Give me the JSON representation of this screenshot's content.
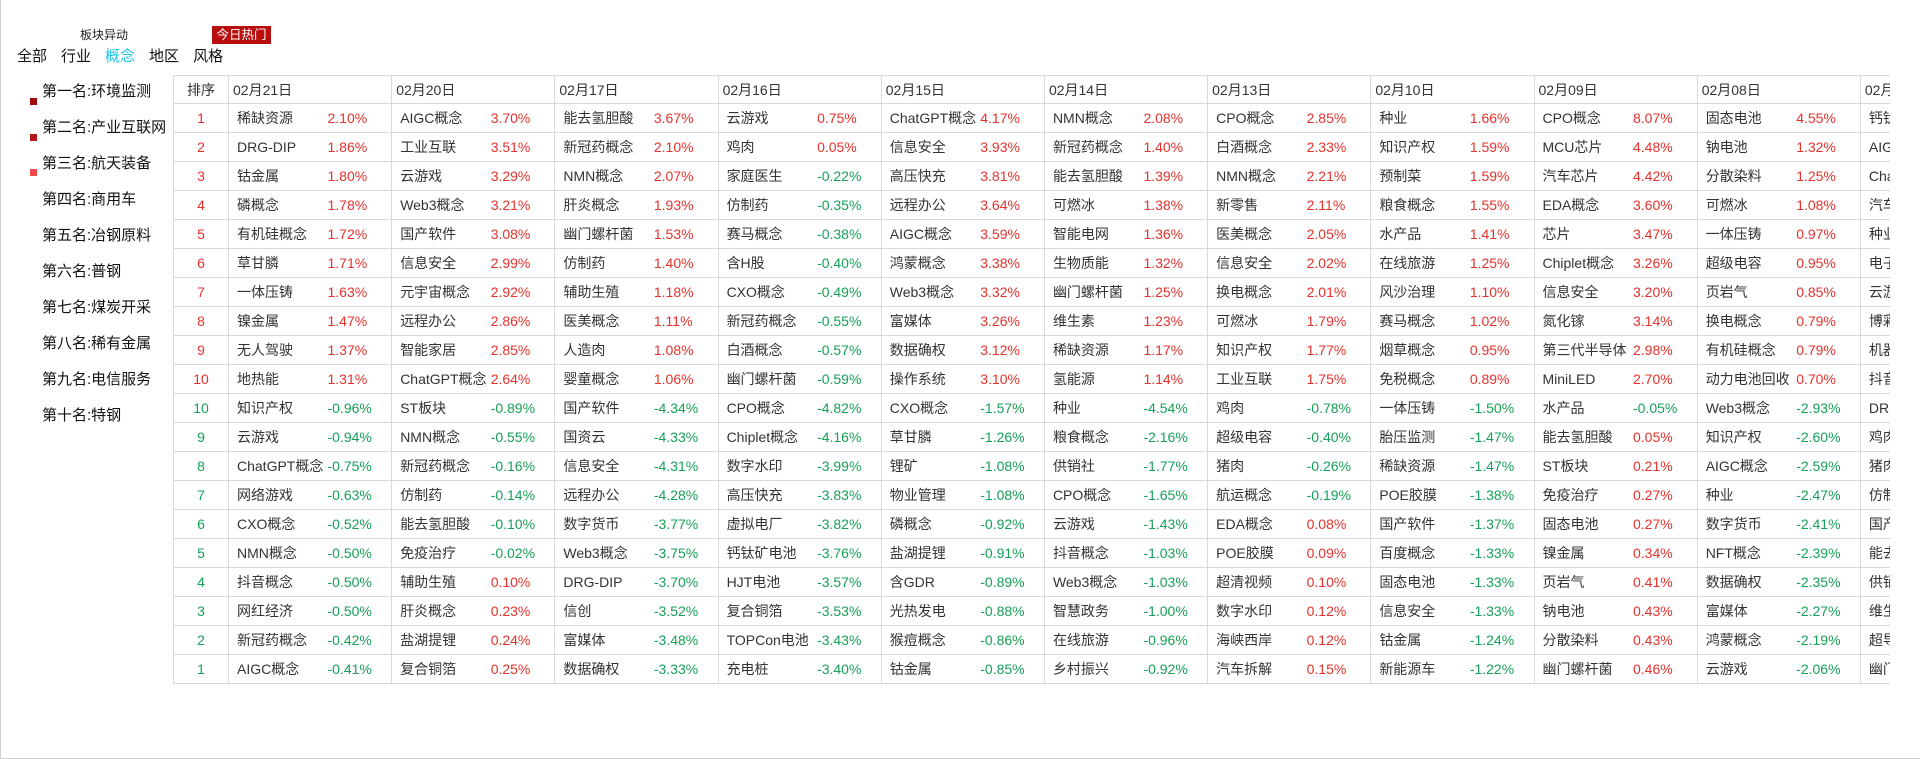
{
  "header": {
    "subtitle": "板块异动",
    "hot_button": "今日热门"
  },
  "tabs": [
    {
      "label": "全部",
      "active": false
    },
    {
      "label": "行业",
      "active": false
    },
    {
      "label": "概念",
      "active": true
    },
    {
      "label": "地区",
      "active": false
    },
    {
      "label": "风格",
      "active": false
    }
  ],
  "ranking": [
    "第一名:环境监测",
    "第二名:产业互联网",
    "第三名:航天装备",
    "第四名:商用车",
    "第五名:冶钢原料",
    "第六名:普钢",
    "第七名:煤炭开采",
    "第八名:稀有金属",
    "第九名:电信服务",
    "第十名:特钢"
  ],
  "colors": {
    "accent": "#22c4ec",
    "up": "#e5322d",
    "down": "#17a058",
    "hot_bg": "#b80e0e",
    "markers": [
      "#a00c0c",
      "#b51616",
      "#f04a4a"
    ]
  },
  "table": {
    "rank_header": "排序",
    "dates": [
      "02月21日",
      "02月20日",
      "02月17日",
      "02月16日",
      "02月15日",
      "02月14日",
      "02月13日",
      "02月10日",
      "02月09日",
      "02月08日",
      "02月"
    ],
    "rows": [
      {
        "rank": "1",
        "cells": [
          [
            "稀缺资源",
            "2.10%"
          ],
          [
            "AIGC概念",
            "3.70%"
          ],
          [
            "能去氢胆酸",
            "3.67%"
          ],
          [
            "云游戏",
            "0.75%"
          ],
          [
            "ChatGPT概念",
            "4.17%"
          ],
          [
            "NMN概念",
            "2.08%"
          ],
          [
            "CPO概念",
            "2.85%"
          ],
          [
            "种业",
            "1.66%"
          ],
          [
            "CPO概念",
            "8.07%"
          ],
          [
            "固态电池",
            "4.55%"
          ]
        ],
        "clip": "钙钛"
      },
      {
        "rank": "2",
        "cells": [
          [
            "DRG-DIP",
            "1.86%"
          ],
          [
            "工业互联",
            "3.51%"
          ],
          [
            "新冠药概念",
            "2.10%"
          ],
          [
            "鸡肉",
            "0.05%"
          ],
          [
            "信息安全",
            "3.93%"
          ],
          [
            "新冠药概念",
            "1.40%"
          ],
          [
            "白酒概念",
            "2.33%"
          ],
          [
            "知识产权",
            "1.59%"
          ],
          [
            "MCU芯片",
            "4.48%"
          ],
          [
            "钠电池",
            "1.32%"
          ]
        ],
        "clip": "AIG"
      },
      {
        "rank": "3",
        "cells": [
          [
            "钴金属",
            "1.80%"
          ],
          [
            "云游戏",
            "3.29%"
          ],
          [
            "NMN概念",
            "2.07%"
          ],
          [
            "家庭医生",
            "-0.22%"
          ],
          [
            "高压快充",
            "3.81%"
          ],
          [
            "能去氢胆酸",
            "1.39%"
          ],
          [
            "NMN概念",
            "2.21%"
          ],
          [
            "预制菜",
            "1.59%"
          ],
          [
            "汽车芯片",
            "4.42%"
          ],
          [
            "分散染料",
            "1.25%"
          ]
        ],
        "clip": "Cha"
      },
      {
        "rank": "4",
        "cells": [
          [
            "磷概念",
            "1.78%"
          ],
          [
            "Web3概念",
            "3.21%"
          ],
          [
            "肝炎概念",
            "1.93%"
          ],
          [
            "仿制药",
            "-0.35%"
          ],
          [
            "远程办公",
            "3.64%"
          ],
          [
            "可燃冰",
            "1.38%"
          ],
          [
            "新零售",
            "2.11%"
          ],
          [
            "粮食概念",
            "1.55%"
          ],
          [
            "EDA概念",
            "3.60%"
          ],
          [
            "可燃冰",
            "1.08%"
          ]
        ],
        "clip": "汽车"
      },
      {
        "rank": "5",
        "cells": [
          [
            "有机硅概念",
            "1.72%"
          ],
          [
            "国产软件",
            "3.08%"
          ],
          [
            "幽门螺杆菌",
            "1.53%"
          ],
          [
            "赛马概念",
            "-0.38%"
          ],
          [
            "AIGC概念",
            "3.59%"
          ],
          [
            "智能电网",
            "1.36%"
          ],
          [
            "医美概念",
            "2.05%"
          ],
          [
            "水产品",
            "1.41%"
          ],
          [
            "芯片",
            "3.47%"
          ],
          [
            "一体压铸",
            "0.97%"
          ]
        ],
        "clip": "种业"
      },
      {
        "rank": "6",
        "cells": [
          [
            "草甘膦",
            "1.71%"
          ],
          [
            "信息安全",
            "2.99%"
          ],
          [
            "仿制药",
            "1.40%"
          ],
          [
            "含H股",
            "-0.40%"
          ],
          [
            "鸿蒙概念",
            "3.38%"
          ],
          [
            "生物质能",
            "1.32%"
          ],
          [
            "信息安全",
            "2.02%"
          ],
          [
            "在线旅游",
            "1.25%"
          ],
          [
            "Chiplet概念",
            "3.26%"
          ],
          [
            "超级电容",
            "0.95%"
          ]
        ],
        "clip": "电子"
      },
      {
        "rank": "7",
        "cells": [
          [
            "一体压铸",
            "1.63%"
          ],
          [
            "元宇宙概念",
            "2.92%"
          ],
          [
            "辅助生殖",
            "1.18%"
          ],
          [
            "CXO概念",
            "-0.49%"
          ],
          [
            "Web3概念",
            "3.32%"
          ],
          [
            "幽门螺杆菌",
            "1.25%"
          ],
          [
            "换电概念",
            "2.01%"
          ],
          [
            "风沙治理",
            "1.10%"
          ],
          [
            "信息安全",
            "3.20%"
          ],
          [
            "页岩气",
            "0.85%"
          ]
        ],
        "clip": "云游"
      },
      {
        "rank": "8",
        "cells": [
          [
            "镍金属",
            "1.47%"
          ],
          [
            "远程办公",
            "2.86%"
          ],
          [
            "医美概念",
            "1.11%"
          ],
          [
            "新冠药概念",
            "-0.55%"
          ],
          [
            "富媒体",
            "3.26%"
          ],
          [
            "维生素",
            "1.23%"
          ],
          [
            "可燃冰",
            "1.79%"
          ],
          [
            "赛马概念",
            "1.02%"
          ],
          [
            "氮化镓",
            "3.14%"
          ],
          [
            "换电概念",
            "0.79%"
          ]
        ],
        "clip": "博彩"
      },
      {
        "rank": "9",
        "cells": [
          [
            "无人驾驶",
            "1.37%"
          ],
          [
            "智能家居",
            "2.85%"
          ],
          [
            "人造肉",
            "1.08%"
          ],
          [
            "白酒概念",
            "-0.57%"
          ],
          [
            "数据确权",
            "3.12%"
          ],
          [
            "稀缺资源",
            "1.17%"
          ],
          [
            "知识产权",
            "1.77%"
          ],
          [
            "烟草概念",
            "0.95%"
          ],
          [
            "第三代半导体",
            "2.98%"
          ],
          [
            "有机硅概念",
            "0.79%"
          ]
        ],
        "clip": "机器"
      },
      {
        "rank": "10",
        "cells": [
          [
            "地热能",
            "1.31%"
          ],
          [
            "ChatGPT概念",
            "2.64%"
          ],
          [
            "婴童概念",
            "1.06%"
          ],
          [
            "幽门螺杆菌",
            "-0.59%"
          ],
          [
            "操作系统",
            "3.10%"
          ],
          [
            "氢能源",
            "1.14%"
          ],
          [
            "工业互联",
            "1.75%"
          ],
          [
            "免税概念",
            "0.89%"
          ],
          [
            "MiniLED",
            "2.70%"
          ],
          [
            "动力电池回收",
            "0.70%"
          ]
        ],
        "clip": "抖音"
      },
      {
        "rank": "10",
        "cells": [
          [
            "知识产权",
            "-0.96%"
          ],
          [
            "ST板块",
            "-0.89%"
          ],
          [
            "国产软件",
            "-4.34%"
          ],
          [
            "CPO概念",
            "-4.82%"
          ],
          [
            "CXO概念",
            "-1.57%"
          ],
          [
            "种业",
            "-4.54%"
          ],
          [
            "鸡肉",
            "-0.78%"
          ],
          [
            "一体压铸",
            "-1.50%"
          ],
          [
            "水产品",
            "-0.05%"
          ],
          [
            "Web3概念",
            "-2.93%"
          ]
        ],
        "clip": "DRC"
      },
      {
        "rank": "9",
        "cells": [
          [
            "云游戏",
            "-0.94%"
          ],
          [
            "NMN概念",
            "-0.55%"
          ],
          [
            "国资云",
            "-4.33%"
          ],
          [
            "Chiplet概念",
            "-4.16%"
          ],
          [
            "草甘膦",
            "-1.26%"
          ],
          [
            "粮食概念",
            "-2.16%"
          ],
          [
            "超级电容",
            "-0.40%"
          ],
          [
            "胎压监测",
            "-1.47%"
          ],
          [
            "能去氢胆酸",
            "0.05%"
          ],
          [
            "知识产权",
            "-2.60%"
          ]
        ],
        "clip": "鸡肉"
      },
      {
        "rank": "8",
        "cells": [
          [
            "ChatGPT概念",
            "-0.75%"
          ],
          [
            "新冠药概念",
            "-0.16%"
          ],
          [
            "信息安全",
            "-4.31%"
          ],
          [
            "数字水印",
            "-3.99%"
          ],
          [
            "锂矿",
            "-1.08%"
          ],
          [
            "供销社",
            "-1.77%"
          ],
          [
            "猪肉",
            "-0.26%"
          ],
          [
            "稀缺资源",
            "-1.47%"
          ],
          [
            "ST板块",
            "0.21%"
          ],
          [
            "AIGC概念",
            "-2.59%"
          ]
        ],
        "clip": "猪肉"
      },
      {
        "rank": "7",
        "cells": [
          [
            "网络游戏",
            "-0.63%"
          ],
          [
            "仿制药",
            "-0.14%"
          ],
          [
            "远程办公",
            "-4.28%"
          ],
          [
            "高压快充",
            "-3.83%"
          ],
          [
            "物业管理",
            "-1.08%"
          ],
          [
            "CPO概念",
            "-1.65%"
          ],
          [
            "航运概念",
            "-0.19%"
          ],
          [
            "POE胶膜",
            "-1.38%"
          ],
          [
            "免疫治疗",
            "0.27%"
          ],
          [
            "种业",
            "-2.47%"
          ]
        ],
        "clip": "仿制"
      },
      {
        "rank": "6",
        "cells": [
          [
            "CXO概念",
            "-0.52%"
          ],
          [
            "能去氢胆酸",
            "-0.10%"
          ],
          [
            "数字货币",
            "-3.77%"
          ],
          [
            "虚拟电厂",
            "-3.82%"
          ],
          [
            "磷概念",
            "-0.92%"
          ],
          [
            "云游戏",
            "-1.43%"
          ],
          [
            "EDA概念",
            "0.08%"
          ],
          [
            "国产软件",
            "-1.37%"
          ],
          [
            "固态电池",
            "0.27%"
          ],
          [
            "数字货币",
            "-2.41%"
          ]
        ],
        "clip": "国产"
      },
      {
        "rank": "5",
        "cells": [
          [
            "NMN概念",
            "-0.50%"
          ],
          [
            "免疫治疗",
            "-0.02%"
          ],
          [
            "Web3概念",
            "-3.75%"
          ],
          [
            "钙钛矿电池",
            "-3.76%"
          ],
          [
            "盐湖提锂",
            "-0.91%"
          ],
          [
            "抖音概念",
            "-1.03%"
          ],
          [
            "POE胶膜",
            "0.09%"
          ],
          [
            "百度概念",
            "-1.33%"
          ],
          [
            "镍金属",
            "0.34%"
          ],
          [
            "NFT概念",
            "-2.39%"
          ]
        ],
        "clip": "能去"
      },
      {
        "rank": "4",
        "cells": [
          [
            "抖音概念",
            "-0.50%"
          ],
          [
            "辅助生殖",
            "0.10%"
          ],
          [
            "DRG-DIP",
            "-3.70%"
          ],
          [
            "HJT电池",
            "-3.57%"
          ],
          [
            "含GDR",
            "-0.89%"
          ],
          [
            "Web3概念",
            "-1.03%"
          ],
          [
            "超清视频",
            "0.10%"
          ],
          [
            "固态电池",
            "-1.33%"
          ],
          [
            "页岩气",
            "0.41%"
          ],
          [
            "数据确权",
            "-2.35%"
          ]
        ],
        "clip": "供销"
      },
      {
        "rank": "3",
        "cells": [
          [
            "网红经济",
            "-0.50%"
          ],
          [
            "肝炎概念",
            "0.23%"
          ],
          [
            "信创",
            "-3.52%"
          ],
          [
            "复合铜箔",
            "-3.53%"
          ],
          [
            "光热发电",
            "-0.88%"
          ],
          [
            "智慧政务",
            "-1.00%"
          ],
          [
            "数字水印",
            "0.12%"
          ],
          [
            "信息安全",
            "-1.33%"
          ],
          [
            "钠电池",
            "0.43%"
          ],
          [
            "富媒体",
            "-2.27%"
          ]
        ],
        "clip": "维生"
      },
      {
        "rank": "2",
        "cells": [
          [
            "新冠药概念",
            "-0.42%"
          ],
          [
            "盐湖提锂",
            "0.24%"
          ],
          [
            "富媒体",
            "-3.48%"
          ],
          [
            "TOPCon电池",
            "-3.43%"
          ],
          [
            "猴痘概念",
            "-0.86%"
          ],
          [
            "在线旅游",
            "-0.96%"
          ],
          [
            "海峡西岸",
            "0.12%"
          ],
          [
            "钴金属",
            "-1.24%"
          ],
          [
            "分散染料",
            "0.43%"
          ],
          [
            "鸿蒙概念",
            "-2.19%"
          ]
        ],
        "clip": "超导"
      },
      {
        "rank": "1",
        "cells": [
          [
            "AIGC概念",
            "-0.41%"
          ],
          [
            "复合铜箔",
            "0.25%"
          ],
          [
            "数据确权",
            "-3.33%"
          ],
          [
            "充电桩",
            "-3.40%"
          ],
          [
            "钴金属",
            "-0.85%"
          ],
          [
            "乡村振兴",
            "-0.92%"
          ],
          [
            "汽车拆解",
            "0.15%"
          ],
          [
            "新能源车",
            "-1.22%"
          ],
          [
            "幽门螺杆菌",
            "0.46%"
          ],
          [
            "云游戏",
            "-2.06%"
          ]
        ],
        "clip": "幽门"
      }
    ]
  }
}
